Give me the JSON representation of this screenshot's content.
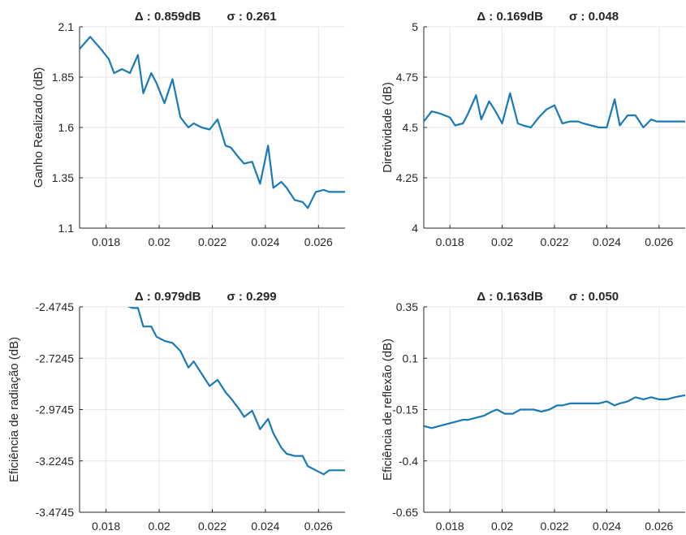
{
  "colors": {
    "line": "#1a7ab6",
    "grid": "#e6e6e6",
    "axis": "#262626",
    "background": "#ffffff"
  },
  "chart_data": [
    {
      "type": "line",
      "title_delta": "Δ : 0.859dB",
      "title_sigma": "σ : 0.261",
      "xlabel": "",
      "ylabel": "Ganho Realizado (dB)",
      "xlim": [
        0.017,
        0.027
      ],
      "ylim": [
        1.1,
        2.1
      ],
      "xticks": [
        0.018,
        0.02,
        0.022,
        0.024,
        0.026
      ],
      "xtick_labels": [
        "0.018",
        "0.02",
        "0.022",
        "0.024",
        "0.026"
      ],
      "yticks": [
        1.1,
        1.35,
        1.6,
        1.85,
        2.1
      ],
      "ytick_labels": [
        "1.1",
        "1.35",
        "1.6",
        "1.85",
        "2.1"
      ],
      "grid": true,
      "series": [
        {
          "x": [
            0.017,
            0.0174,
            0.0178,
            0.0181,
            0.0183,
            0.0186,
            0.0189,
            0.0192,
            0.0194,
            0.0197,
            0.0199,
            0.0202,
            0.0205,
            0.0208,
            0.0211,
            0.0213,
            0.0216,
            0.0219,
            0.0222,
            0.0225,
            0.0227,
            0.023,
            0.0232,
            0.0235,
            0.0238,
            0.0241,
            0.0243,
            0.0246,
            0.0248,
            0.0251,
            0.0254,
            0.0256,
            0.0259,
            0.0262,
            0.0264,
            0.027
          ],
          "y": [
            1.99,
            2.05,
            1.99,
            1.94,
            1.87,
            1.89,
            1.87,
            1.96,
            1.77,
            1.87,
            1.82,
            1.72,
            1.84,
            1.65,
            1.6,
            1.62,
            1.6,
            1.59,
            1.64,
            1.51,
            1.5,
            1.45,
            1.42,
            1.43,
            1.32,
            1.51,
            1.3,
            1.33,
            1.3,
            1.24,
            1.23,
            1.2,
            1.28,
            1.29,
            1.28,
            1.28
          ]
        }
      ]
    },
    {
      "type": "line",
      "title_delta": "Δ : 0.169dB",
      "title_sigma": "σ : 0.048",
      "xlabel": "",
      "ylabel": "Diretividade (dB)",
      "xlim": [
        0.017,
        0.027
      ],
      "ylim": [
        4,
        5
      ],
      "xticks": [
        0.018,
        0.02,
        0.022,
        0.024,
        0.026
      ],
      "xtick_labels": [
        "0.018",
        "0.02",
        "0.022",
        "0.024",
        "0.026"
      ],
      "yticks": [
        4,
        4.25,
        4.5,
        4.75,
        5
      ],
      "ytick_labels": [
        "4",
        "4.25",
        "4.5",
        "4.75",
        "5"
      ],
      "grid": true,
      "series": [
        {
          "x": [
            0.017,
            0.0173,
            0.0176,
            0.018,
            0.0182,
            0.0185,
            0.0187,
            0.019,
            0.0192,
            0.0195,
            0.0197,
            0.02,
            0.0203,
            0.0206,
            0.0208,
            0.0211,
            0.0214,
            0.0217,
            0.022,
            0.0223,
            0.0226,
            0.0229,
            0.0231,
            0.0234,
            0.0237,
            0.024,
            0.0243,
            0.0245,
            0.0248,
            0.0251,
            0.0254,
            0.0257,
            0.0259,
            0.0262,
            0.0265,
            0.027
          ],
          "y": [
            4.53,
            4.58,
            4.57,
            4.55,
            4.51,
            4.52,
            4.57,
            4.66,
            4.54,
            4.63,
            4.59,
            4.52,
            4.67,
            4.52,
            4.51,
            4.5,
            4.55,
            4.59,
            4.61,
            4.52,
            4.53,
            4.53,
            4.52,
            4.51,
            4.5,
            4.5,
            4.64,
            4.51,
            4.56,
            4.56,
            4.5,
            4.54,
            4.53,
            4.53,
            4.53,
            4.53
          ]
        }
      ]
    },
    {
      "type": "line",
      "title_delta": "Δ : 0.979dB",
      "title_sigma": "σ : 0.299",
      "xlabel": "",
      "ylabel": "Eficiência de radiação (dB)",
      "xlim": [
        0.017,
        0.027
      ],
      "ylim": [
        -3.4745,
        -2.4745
      ],
      "xticks": [
        0.018,
        0.02,
        0.022,
        0.024,
        0.026
      ],
      "xtick_labels": [
        "0.018",
        "0.02",
        "0.022",
        "0.024",
        "0.026"
      ],
      "yticks": [
        -3.4745,
        -3.2245,
        -2.9745,
        -2.7245,
        -2.4745
      ],
      "ytick_labels": [
        "-3.4745",
        "-3.2245",
        "-2.9745",
        "-2.7245",
        "-2.4745"
      ],
      "grid": true,
      "series": [
        {
          "x": [
            0.0188,
            0.019,
            0.0192,
            0.0194,
            0.0197,
            0.0199,
            0.0202,
            0.0205,
            0.0208,
            0.0211,
            0.0213,
            0.0216,
            0.0219,
            0.0222,
            0.0225,
            0.0227,
            0.023,
            0.0232,
            0.0235,
            0.0238,
            0.0241,
            0.0243,
            0.0246,
            0.0248,
            0.0251,
            0.0254,
            0.0256,
            0.0259,
            0.0262,
            0.0264,
            0.0267,
            0.027
          ],
          "y": [
            -2.47,
            -2.48,
            -2.48,
            -2.57,
            -2.57,
            -2.62,
            -2.64,
            -2.65,
            -2.69,
            -2.77,
            -2.74,
            -2.8,
            -2.86,
            -2.83,
            -2.89,
            -2.92,
            -2.97,
            -3.01,
            -2.98,
            -3.07,
            -3.02,
            -3.09,
            -3.16,
            -3.19,
            -3.2,
            -3.2,
            -3.25,
            -3.27,
            -3.29,
            -3.27,
            -3.27,
            -3.27
          ]
        }
      ]
    },
    {
      "type": "line",
      "title_delta": "Δ : 0.163dB",
      "title_sigma": "σ : 0.050",
      "xlabel": "",
      "ylabel": "Eficiência de reflexão (dB)",
      "xlim": [
        0.017,
        0.027
      ],
      "ylim": [
        -0.65,
        0.35
      ],
      "xticks": [
        0.018,
        0.02,
        0.022,
        0.024,
        0.026
      ],
      "xtick_labels": [
        "0.018",
        "0.02",
        "0.022",
        "0.024",
        "0.026"
      ],
      "yticks": [
        -0.65,
        -0.4,
        -0.15,
        0.1,
        0.35
      ],
      "ytick_labels": [
        "-0.65",
        "-0.4",
        "-0.15",
        "0.1",
        "0.35"
      ],
      "grid": true,
      "series": [
        {
          "x": [
            0.017,
            0.0173,
            0.0176,
            0.0179,
            0.0182,
            0.0185,
            0.0187,
            0.019,
            0.0193,
            0.0196,
            0.0198,
            0.0201,
            0.0204,
            0.0207,
            0.0209,
            0.0212,
            0.0215,
            0.0218,
            0.0221,
            0.0223,
            0.0226,
            0.0229,
            0.0232,
            0.0234,
            0.0237,
            0.024,
            0.0243,
            0.0245,
            0.0248,
            0.0251,
            0.0254,
            0.0257,
            0.026,
            0.0263,
            0.0266,
            0.027
          ],
          "y": [
            -0.23,
            -0.24,
            -0.23,
            -0.22,
            -0.21,
            -0.2,
            -0.2,
            -0.19,
            -0.18,
            -0.16,
            -0.15,
            -0.17,
            -0.17,
            -0.15,
            -0.15,
            -0.15,
            -0.16,
            -0.15,
            -0.13,
            -0.13,
            -0.12,
            -0.12,
            -0.12,
            -0.12,
            -0.12,
            -0.11,
            -0.13,
            -0.12,
            -0.11,
            -0.09,
            -0.1,
            -0.09,
            -0.1,
            -0.1,
            -0.09,
            -0.08
          ]
        }
      ]
    }
  ]
}
